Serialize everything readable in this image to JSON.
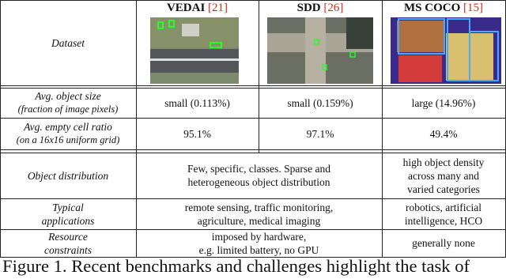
{
  "header": {
    "row_label": "Dataset",
    "columns": [
      {
        "name": "VEDAI",
        "cite": "[21]"
      },
      {
        "name": "SDD",
        "cite": "[26]"
      },
      {
        "name": "MS COCO",
        "cite": "[15]"
      }
    ]
  },
  "table": {
    "rows": [
      {
        "label": [
          "Avg. object size",
          "(fraction of image pixels)"
        ],
        "cells": [
          [
            "small (0.113%)"
          ],
          [
            "small (0.159%)"
          ],
          [
            "large (14.96%)"
          ]
        ]
      },
      {
        "label": [
          "Avg. empty cell ratio",
          "(on a 16x16 uniform grid)"
        ],
        "cells": [
          [
            "95.1%"
          ],
          [
            "97.1%"
          ],
          [
            "49.4%"
          ]
        ]
      },
      {
        "label": [
          "Object distribution"
        ],
        "cells": [
          [
            "Few, specific, classes. Sparse and",
            "heterogeneous object distribution"
          ],
          [
            "high object density",
            "across many and",
            "varied categories"
          ]
        ]
      },
      {
        "label": [
          "Typical",
          "applications"
        ],
        "cells": [
          [
            "remote sensing, traffic monitoring,",
            "agriculture, medical imaging"
          ],
          [
            "robotics, artificial",
            "intelligence, HCO"
          ]
        ]
      },
      {
        "label": [
          "Resource",
          "constraints"
        ],
        "cells": [
          [
            "imposed by hardware,",
            "e.g. limited battery, no GPU"
          ],
          [
            "generally none"
          ]
        ]
      }
    ]
  },
  "caption": "Figure 1. Recent benchmarks and challenges highlight the task of"
}
